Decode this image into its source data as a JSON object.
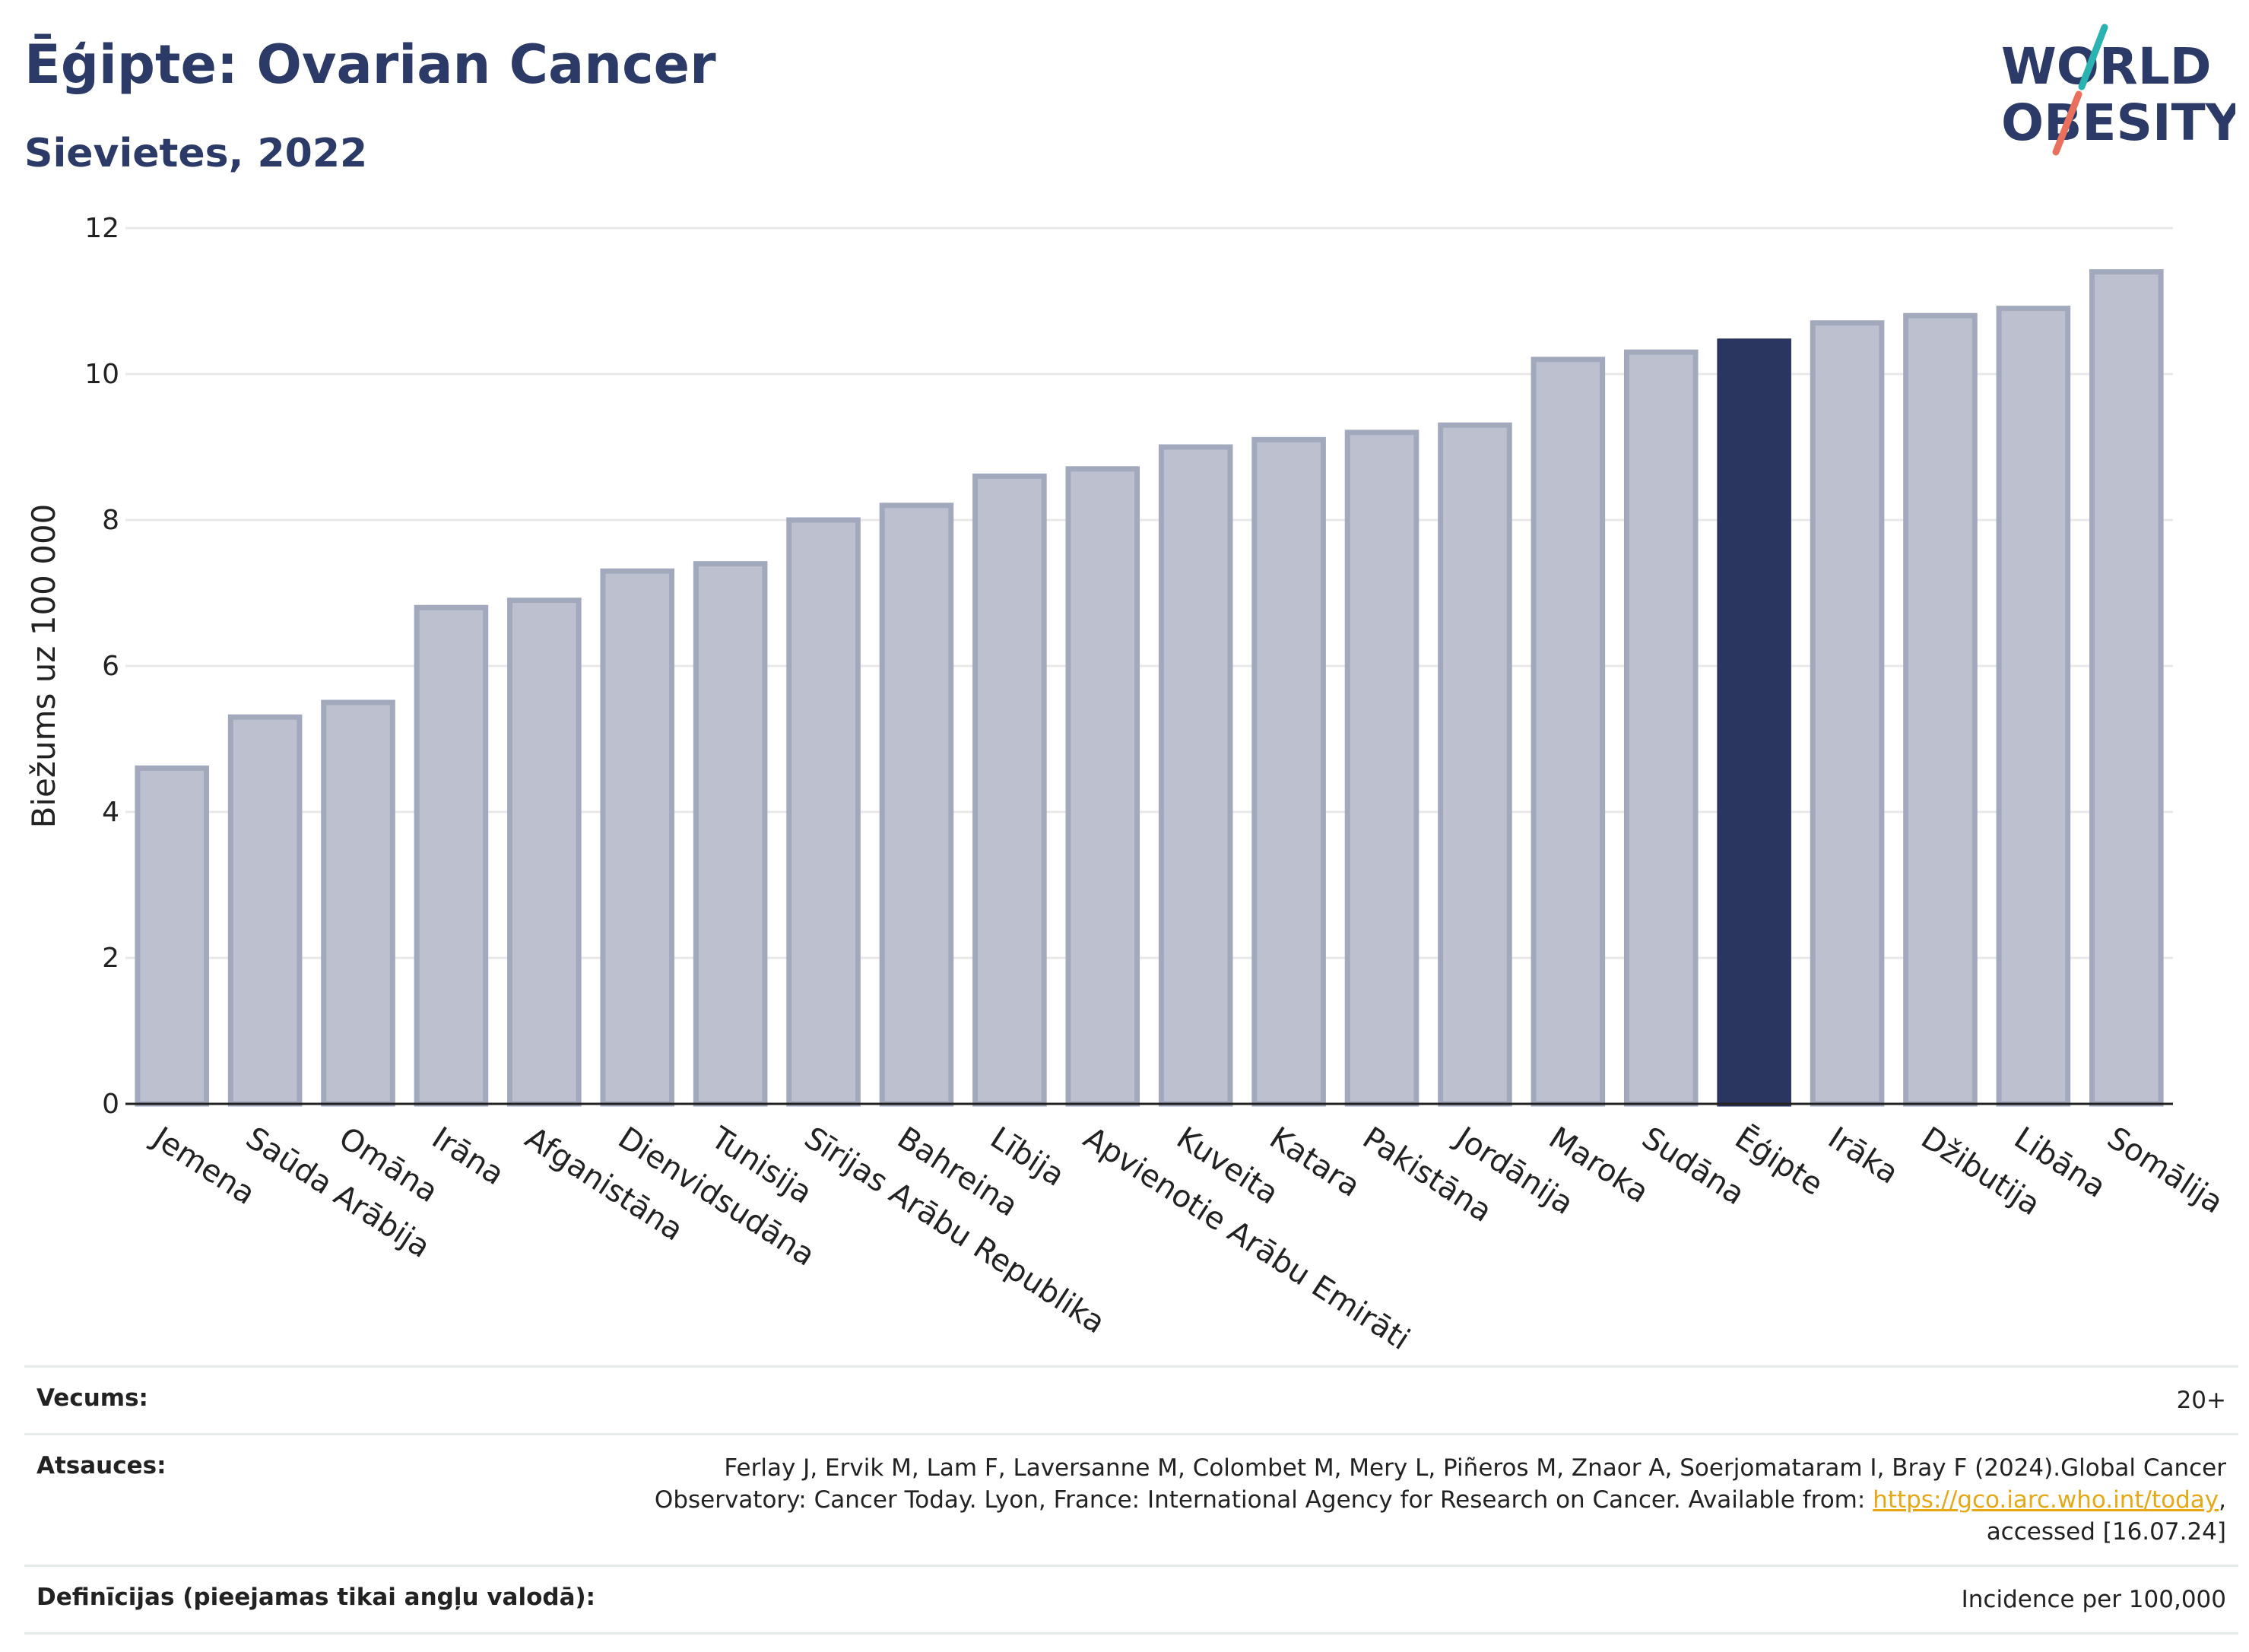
{
  "header": {
    "title": "Ēģipte: Ovarian Cancer",
    "subtitle": "Sievietes, 2022"
  },
  "logo": {
    "line1": "WORLD",
    "line2": "OBESITY",
    "accent_color": "#2ab3b1",
    "slash_color": "#e8705d",
    "text_color": "#2b3a67"
  },
  "colors": {
    "bar": "#bdc1cf",
    "bar_stroke": "#a3a9bd",
    "highlight": "#2b3660",
    "axis": "#222222",
    "grid": "#e8e8e8"
  },
  "chart_data": {
    "type": "bar",
    "ylabel": "Biežums uz 100 000",
    "ylim": [
      0,
      12
    ],
    "yticks": [
      0,
      2,
      4,
      6,
      8,
      10,
      12
    ],
    "highlight": "Ēģipte",
    "categories": [
      "Jemena",
      "Saūda Arābija",
      "Omāna",
      "Irāna",
      "Afganistāna",
      "Dienvidsudāna",
      "Tunisija",
      "Sīrijas Arābu Republika",
      "Bahreina",
      "Lībija",
      "Apvienotie Arābu Emirāti",
      "Kuveita",
      "Katara",
      "Pakistāna",
      "Jordānija",
      "Maroka",
      "Sudāna",
      "Ēģipte",
      "Irāka",
      "Džibutija",
      "Libāna",
      "Somālija"
    ],
    "values": [
      4.6,
      5.3,
      5.5,
      6.8,
      6.9,
      7.3,
      7.4,
      8.0,
      8.2,
      8.6,
      8.7,
      9.0,
      9.1,
      9.2,
      9.3,
      10.2,
      10.3,
      10.45,
      10.7,
      10.8,
      10.9,
      11.4
    ]
  },
  "meta": {
    "age_label": "Vecums:",
    "age_value": "20+",
    "refs_label": "Atsauces:",
    "refs_text_1": "Ferlay J, Ervik M, Lam F, Laversanne M, Colombet M, Mery L, Piñeros M, Znaor A, Soerjomataram I, Bray F (2024).Global Cancer",
    "refs_text_2": "Observatory: Cancer Today. Lyon, France: International Agency for Research on Cancer. Available from: ",
    "refs_link": "https://gco.iarc.who.int/today",
    "refs_text_3": ",",
    "refs_text_4": "accessed [16.07.24]",
    "def_label": "Definīcijas (pieejamas tikai angļu valodā):",
    "def_value": "Incidence per 100,000"
  }
}
